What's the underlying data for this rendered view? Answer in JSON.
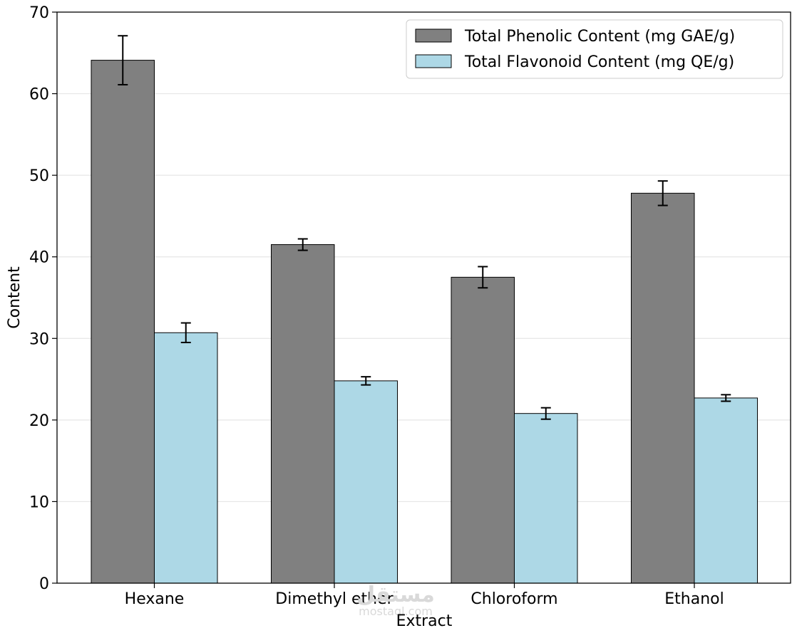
{
  "chart_data": {
    "type": "bar",
    "title": "",
    "xlabel": "Extract",
    "ylabel": "Content",
    "categories": [
      "Hexane",
      "Dimethyl ether",
      "Chloroform",
      "Ethanol"
    ],
    "series": [
      {
        "name": "Total Phenolic Content (mg GAE/g)",
        "color": "#808080",
        "values": [
          64.1,
          41.5,
          37.5,
          47.8
        ],
        "errors": [
          3.0,
          0.7,
          1.3,
          1.5
        ]
      },
      {
        "name": "Total Flavonoid Content (mg QE/g)",
        "color": "#add8e6",
        "values": [
          30.7,
          24.8,
          20.8,
          22.7
        ],
        "errors": [
          1.2,
          0.5,
          0.7,
          0.4
        ]
      }
    ],
    "ylim": [
      0,
      70
    ],
    "yticks": [
      0,
      10,
      20,
      30,
      40,
      50,
      60,
      70
    ],
    "grid": "y",
    "legend": "top-right"
  },
  "watermark": {
    "logo_text": "مستقل",
    "url_text": "mostaql.com"
  }
}
